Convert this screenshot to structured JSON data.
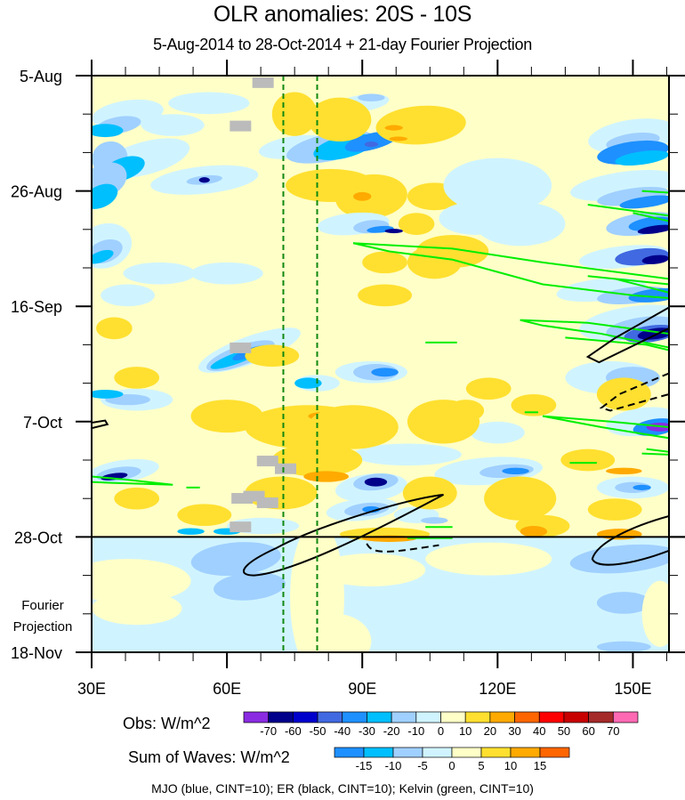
{
  "chart_data": {
    "type": "heatmap",
    "title": "OLR anomalies: 20S - 10S",
    "subtitle": "5-Aug-2014 to 28-Oct-2014 + 21-day Fourier Projection",
    "xlabel": "",
    "ylabel": "",
    "x_axis": {
      "range_deg_east": [
        30,
        158
      ],
      "tick_labels": [
        "30E",
        "60E",
        "90E",
        "120E",
        "150E"
      ],
      "tick_values": [
        30,
        60,
        90,
        120,
        150
      ],
      "minor_tick_step": 7.5
    },
    "y_axis": {
      "direction": "time increases downward",
      "tick_labels": [
        "5-Aug",
        "26-Aug",
        "16-Sep",
        "7-Oct",
        "28-Oct",
        "18-Nov"
      ],
      "tick_day_offsets": [
        0,
        21,
        42,
        63,
        84,
        105
      ],
      "minor_tick_step_days": 7,
      "projection_label": "Fourier Projection",
      "observation_end_label": "28-Oct"
    },
    "reference_lines": {
      "vertical_dashed_green_lon": [
        72.5,
        80
      ],
      "horizontal_solid_black_date": "28-Oct"
    },
    "colorbars": [
      {
        "name": "obs",
        "label": "Obs: W/m^2",
        "levels": [
          -70,
          -60,
          -50,
          -40,
          -30,
          -20,
          -10,
          0,
          10,
          20,
          30,
          40,
          50,
          60,
          70
        ],
        "colors": [
          "#8a2be2",
          "#00008b",
          "#0000cd",
          "#4169e1",
          "#1e90ff",
          "#00bfff",
          "#a0d0ff",
          "#d0f4ff",
          "#ffffc8",
          "#ffe030",
          "#ffaa00",
          "#ff6600",
          "#ff0000",
          "#c80000",
          "#a52a2a",
          "#ff69b4"
        ]
      },
      {
        "name": "waves",
        "label": "Sum of Waves: W/m^2",
        "levels": [
          -15,
          -10,
          -5,
          0,
          5,
          10,
          15
        ],
        "colors": [
          "#1e90ff",
          "#00bfff",
          "#a0d0ff",
          "#d0f4ff",
          "#ffffc8",
          "#ffe030",
          "#ffaa00",
          "#ff6600"
        ]
      }
    ],
    "contour_legend": "MJO (blue, CINT=10); ER (black, CINT=10); Kelvin (green, CINT=10)",
    "features": [
      {
        "kind": "kelvin",
        "color": "green",
        "desc": "eastward-propagating band from ~90E at ~31-Aug to ~158E at ~8-Sep"
      },
      {
        "kind": "kelvin",
        "color": "green",
        "desc": "band from ~141E at ~26-Aug east of 158E"
      },
      {
        "kind": "kelvin",
        "color": "green",
        "desc": "band from ~125E at ~20-Sep east of 158E"
      },
      {
        "kind": "kelvin",
        "color": "green",
        "desc": "band from ~130E at ~6-Oct east of 158E"
      },
      {
        "kind": "kelvin",
        "color": "green",
        "desc": "small band at ~32-45E around ~19-Oct"
      },
      {
        "kind": "er",
        "color": "black",
        "style": "solid",
        "desc": "westward-tilted positive ER loop from ~108E 20-Oct to ~63E 31-Oct"
      },
      {
        "kind": "er",
        "color": "black",
        "style": "solid",
        "desc": "loop near 145-158E around 16-Sep to 23-Sep"
      },
      {
        "kind": "er",
        "color": "black",
        "style": "dashed",
        "desc": "negative ER near 143-158E around 28-Sep to 5-Oct"
      },
      {
        "kind": "er",
        "color": "black",
        "style": "dashed",
        "desc": "negative ER near 91-105E around 29-Oct to 31-Oct"
      },
      {
        "kind": "er",
        "color": "black",
        "style": "solid",
        "desc": "loop near 140-158E around 25-Oct to 1-Nov"
      }
    ],
    "missing_data_color": "#bbbbbb"
  }
}
